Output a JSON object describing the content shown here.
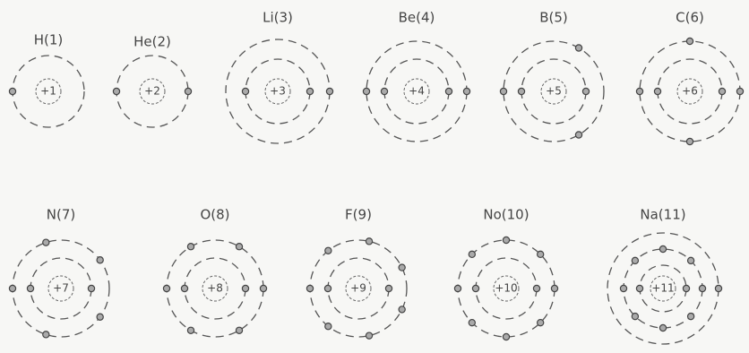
{
  "atoms": [
    {
      "label": "H(1)",
      "charge": "+1"
    },
    {
      "label": "He(2)",
      "charge": "+2"
    },
    {
      "label": "Li(3)",
      "charge": "+3"
    },
    {
      "label": "Be(4)",
      "charge": "+4"
    },
    {
      "label": "B(5)",
      "charge": "+5"
    },
    {
      "label": "C(6)",
      "charge": "+6"
    },
    {
      "label": "N(7)",
      "charge": "+7"
    },
    {
      "label": "O(8)",
      "charge": "+8"
    },
    {
      "label": "F(9)",
      "charge": "+9"
    },
    {
      "label": "No(10)",
      "charge": "+10"
    },
    {
      "label": "Na(11)",
      "charge": "+11"
    }
  ]
}
